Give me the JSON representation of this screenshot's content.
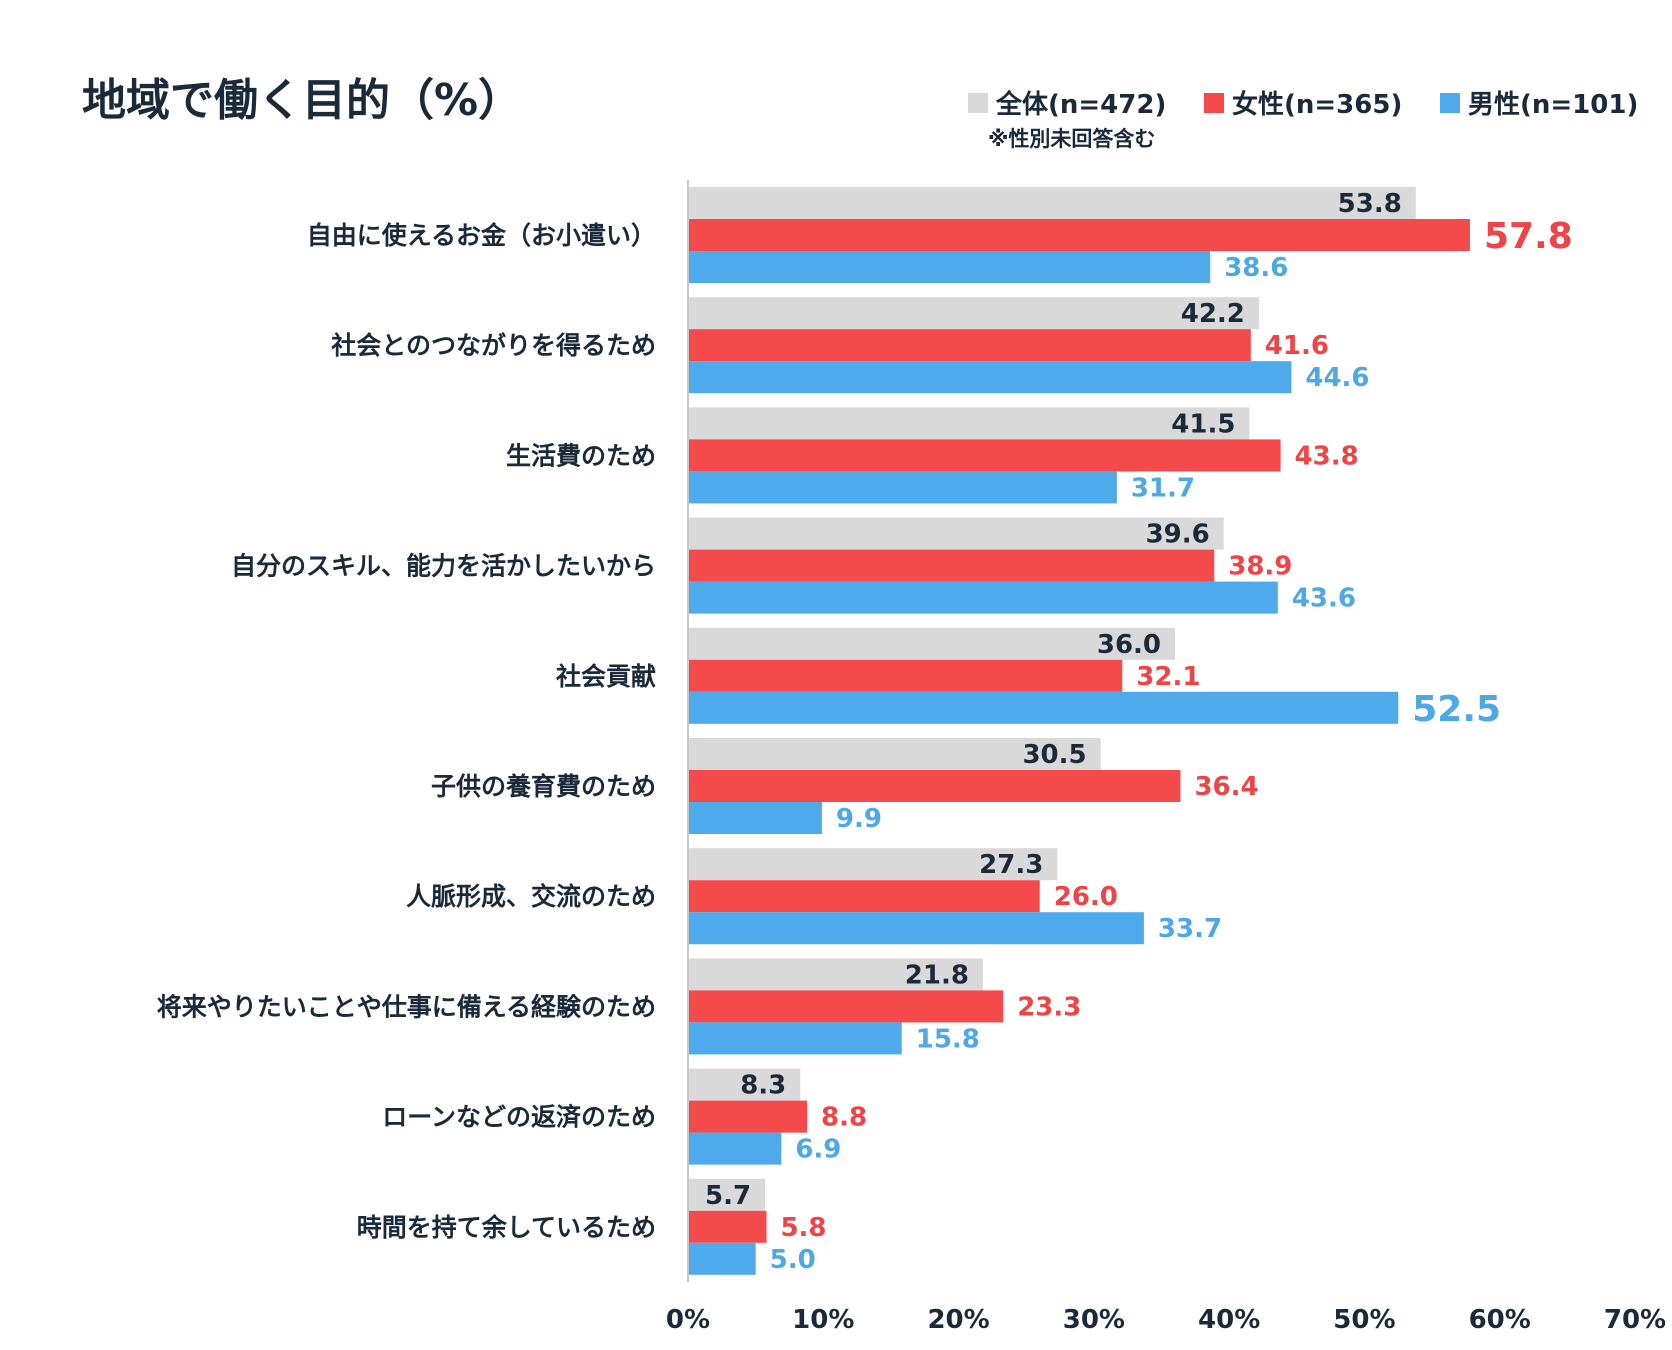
{
  "chart_data": {
    "type": "bar",
    "orientation": "horizontal",
    "title": "地域で働く目的（%）",
    "legend_note": "※性別未回答含む",
    "legend_position": "top-right",
    "xlim": [
      0,
      70
    ],
    "x_ticks": [
      0,
      10,
      20,
      30,
      40,
      50,
      60,
      70
    ],
    "x_tick_labels": [
      "0%",
      "10%",
      "20%",
      "30%",
      "40%",
      "50%",
      "60%",
      "70%"
    ],
    "categories": [
      "自由に使えるお金（お小遣い）",
      "社会とのつながりを得るため",
      "生活費のため",
      "自分のスキル、能力を活かしたいから",
      "社会貢献",
      "子供の養育費のため",
      "人脈形成、交流のため",
      "将来やりたいことや仕事に備える経験のため",
      "ローンなどの返済のため",
      "時間を持て余しているため"
    ],
    "series": [
      {
        "name": "全体(n=472)",
        "color": "#d9d9d9",
        "label_color": "#1b2a3a",
        "values": [
          53.8,
          42.2,
          41.5,
          39.6,
          36.0,
          30.5,
          27.3,
          21.8,
          8.3,
          5.7
        ],
        "labels": [
          "53.8",
          "42.2",
          "41.5",
          "39.6",
          "36.0",
          "30.5",
          "27.3",
          "21.8",
          "8.3",
          "5.7"
        ]
      },
      {
        "name": "女性(n=365)",
        "color": "#f44a4b",
        "label_color": "#ee4446",
        "values": [
          57.8,
          41.6,
          43.8,
          38.9,
          32.1,
          36.4,
          26.0,
          23.3,
          8.8,
          5.8
        ],
        "labels": [
          "57.8",
          "41.6",
          "43.8",
          "38.9",
          "32.1",
          "36.4",
          "26.0",
          "23.3",
          "8.8",
          "5.8"
        ],
        "highlight_index": 0
      },
      {
        "name": "男性(n=101)",
        "color": "#4eaaea",
        "label_color": "#4ea8e4",
        "values": [
          38.6,
          44.6,
          31.7,
          43.6,
          52.5,
          9.9,
          33.7,
          15.8,
          6.9,
          5.0
        ],
        "labels": [
          "38.6",
          "44.6",
          "31.7",
          "43.6",
          "52.5",
          "9.9",
          "33.7",
          "15.8",
          "6.9",
          "5.0"
        ],
        "highlight_index": 4
      }
    ]
  }
}
